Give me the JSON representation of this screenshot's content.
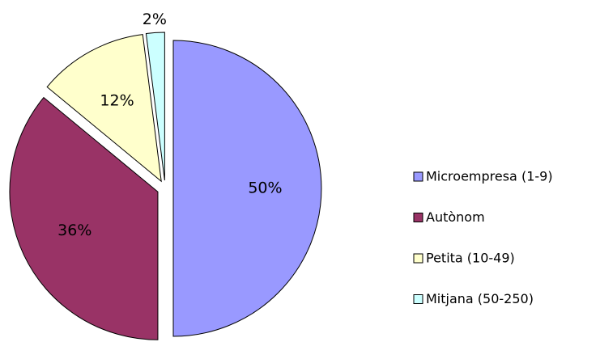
{
  "chart_data": {
    "type": "pie",
    "categories": [
      "Microempresa (1-9)",
      "Autònom",
      "Petita (10-49)",
      "Mitjana (50-250)"
    ],
    "values": [
      50,
      36,
      12,
      2
    ],
    "value_labels": [
      "50%",
      "36%",
      "12%",
      "2%"
    ],
    "colors": [
      "#9999ff",
      "#993366",
      "#ffffcc",
      "#ccffff"
    ],
    "legend": "right"
  }
}
